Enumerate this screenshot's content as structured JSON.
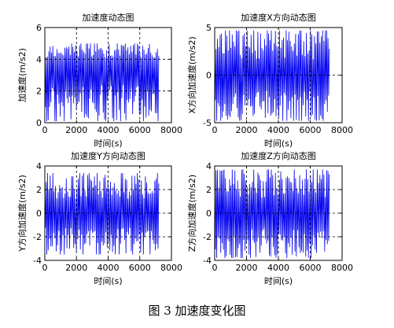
{
  "caption": "图 3 加速度变化图",
  "series_color": "#0000ee",
  "chart_data": [
    {
      "type": "line",
      "title": "加速度动态图",
      "xlabel": "时间(s)",
      "ylabel": "加速度(m/s2)",
      "xlim": [
        0,
        8000
      ],
      "ylim": [
        0,
        6
      ],
      "xticks": [
        0,
        2000,
        4000,
        6000,
        8000
      ],
      "yticks": [
        0,
        2,
        4,
        6
      ],
      "grid_x": [
        2000,
        4000,
        6000
      ],
      "grid_y": [
        2,
        4
      ],
      "grid": "dashed",
      "x_range": [
        0,
        7200
      ],
      "y_center": 3.6,
      "y_range": [
        0.1,
        5.0
      ]
    },
    {
      "type": "line",
      "title": "加速度X方向动态图",
      "xlabel": "时间(s)",
      "ylabel": "X方向加速度(m/s2)",
      "xlim": [
        0,
        8000
      ],
      "ylim": [
        -5,
        5
      ],
      "xticks": [
        0,
        2000,
        4000,
        6000,
        8000
      ],
      "yticks": [
        -5,
        0,
        5
      ],
      "grid_x": [
        2000,
        4000,
        6000
      ],
      "grid_y": [
        0
      ],
      "grid": "dashed",
      "x_range": [
        0,
        7200
      ],
      "y_center": 0,
      "y_range": [
        -4.8,
        4.7
      ]
    },
    {
      "type": "line",
      "title": "加速度Y方向动态图",
      "xlabel": "时间(s)",
      "ylabel": "Y方向加速度(m/s2)",
      "xlim": [
        0,
        8000
      ],
      "ylim": [
        -4,
        4
      ],
      "xticks": [
        0,
        2000,
        4000,
        6000,
        8000
      ],
      "yticks": [
        -4,
        -2,
        0,
        2,
        4
      ],
      "grid_x": [
        2000,
        4000,
        6000
      ],
      "grid_y": [
        -2,
        0,
        2
      ],
      "grid": "dashed",
      "x_range": [
        0,
        7200
      ],
      "y_center": 0,
      "y_range": [
        -3.5,
        3.4
      ]
    },
    {
      "type": "line",
      "title": "加速度Z方向动态图",
      "xlabel": "时间(s)",
      "ylabel": "Z方向加速度(m/s2)",
      "xlim": [
        0,
        8000
      ],
      "ylim": [
        -4,
        4
      ],
      "xticks": [
        0,
        2000,
        4000,
        6000,
        8000
      ],
      "yticks": [
        -4,
        -2,
        0,
        2,
        4
      ],
      "grid_x": [
        2000,
        4000,
        6000
      ],
      "grid_y": [
        -2,
        0,
        2
      ],
      "grid": "dashed",
      "x_range": [
        0,
        7200
      ],
      "y_center": 0,
      "y_range": [
        -3.8,
        3.7
      ]
    }
  ]
}
